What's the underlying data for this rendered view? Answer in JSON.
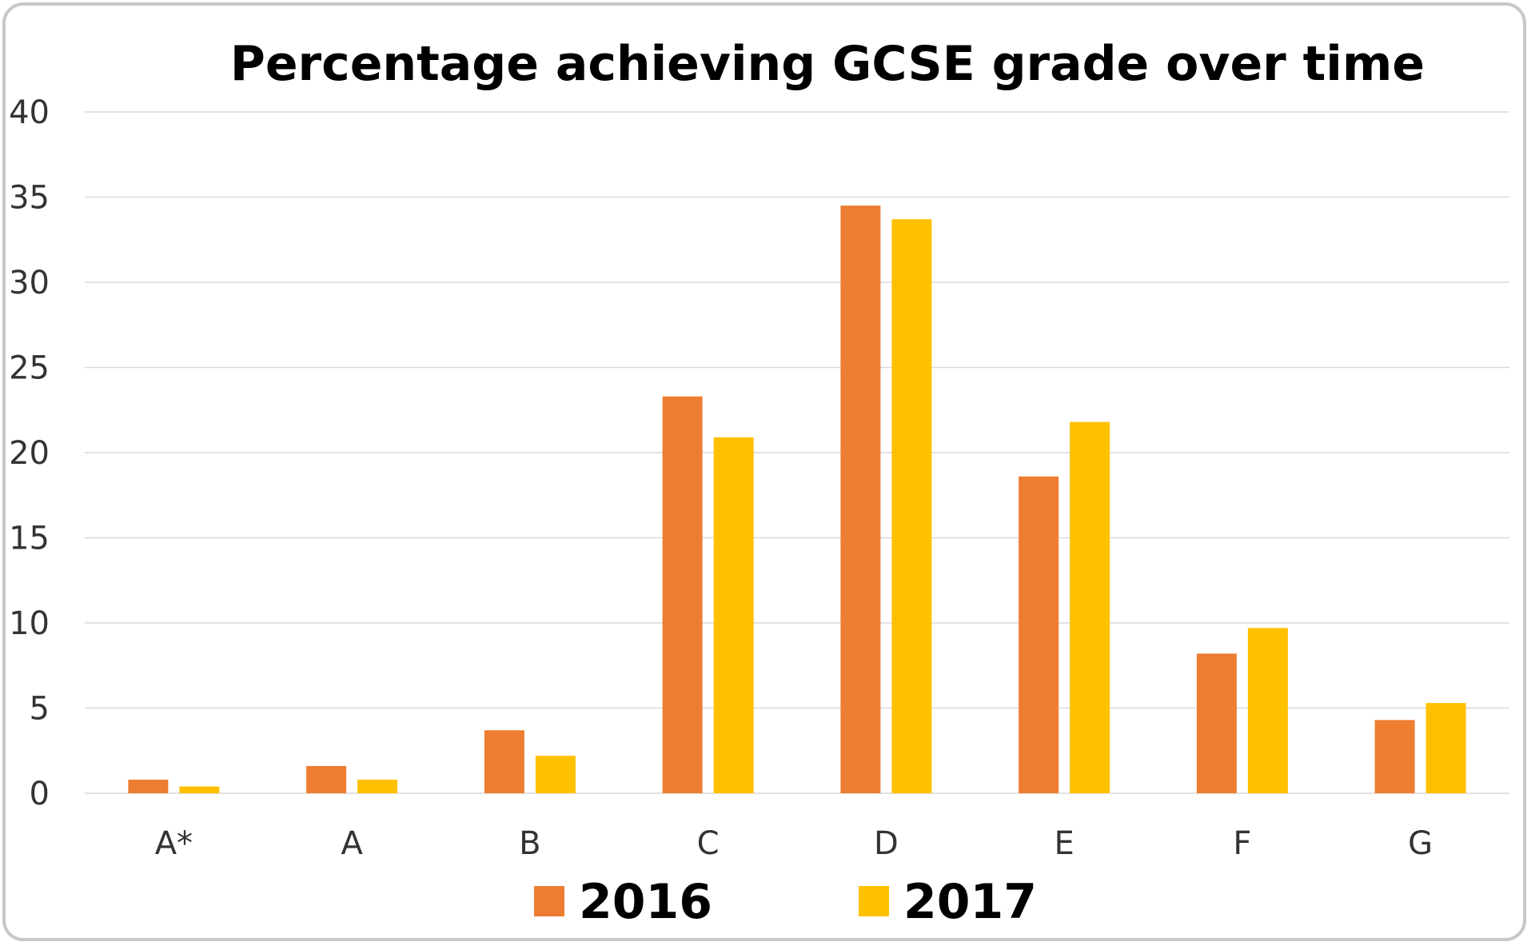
{
  "chart_data": {
    "type": "bar",
    "title": "Percentage achieving GCSE grade over time",
    "categories": [
      "A*",
      "A",
      "B",
      "C",
      "D",
      "E",
      "F",
      "G"
    ],
    "series": [
      {
        "name": "2016",
        "color": "#ed7d31",
        "values": [
          0.8,
          1.6,
          3.7,
          23.3,
          34.5,
          18.6,
          8.2,
          4.3
        ]
      },
      {
        "name": "2017",
        "color": "#ffc000",
        "values": [
          0.4,
          0.8,
          2.2,
          20.9,
          33.7,
          21.8,
          9.7,
          5.3
        ]
      }
    ],
    "ylim": [
      0,
      40
    ],
    "yticks": [
      0,
      5,
      10,
      15,
      20,
      25,
      30,
      35,
      40
    ],
    "grid": true,
    "legend_position": "bottom"
  }
}
